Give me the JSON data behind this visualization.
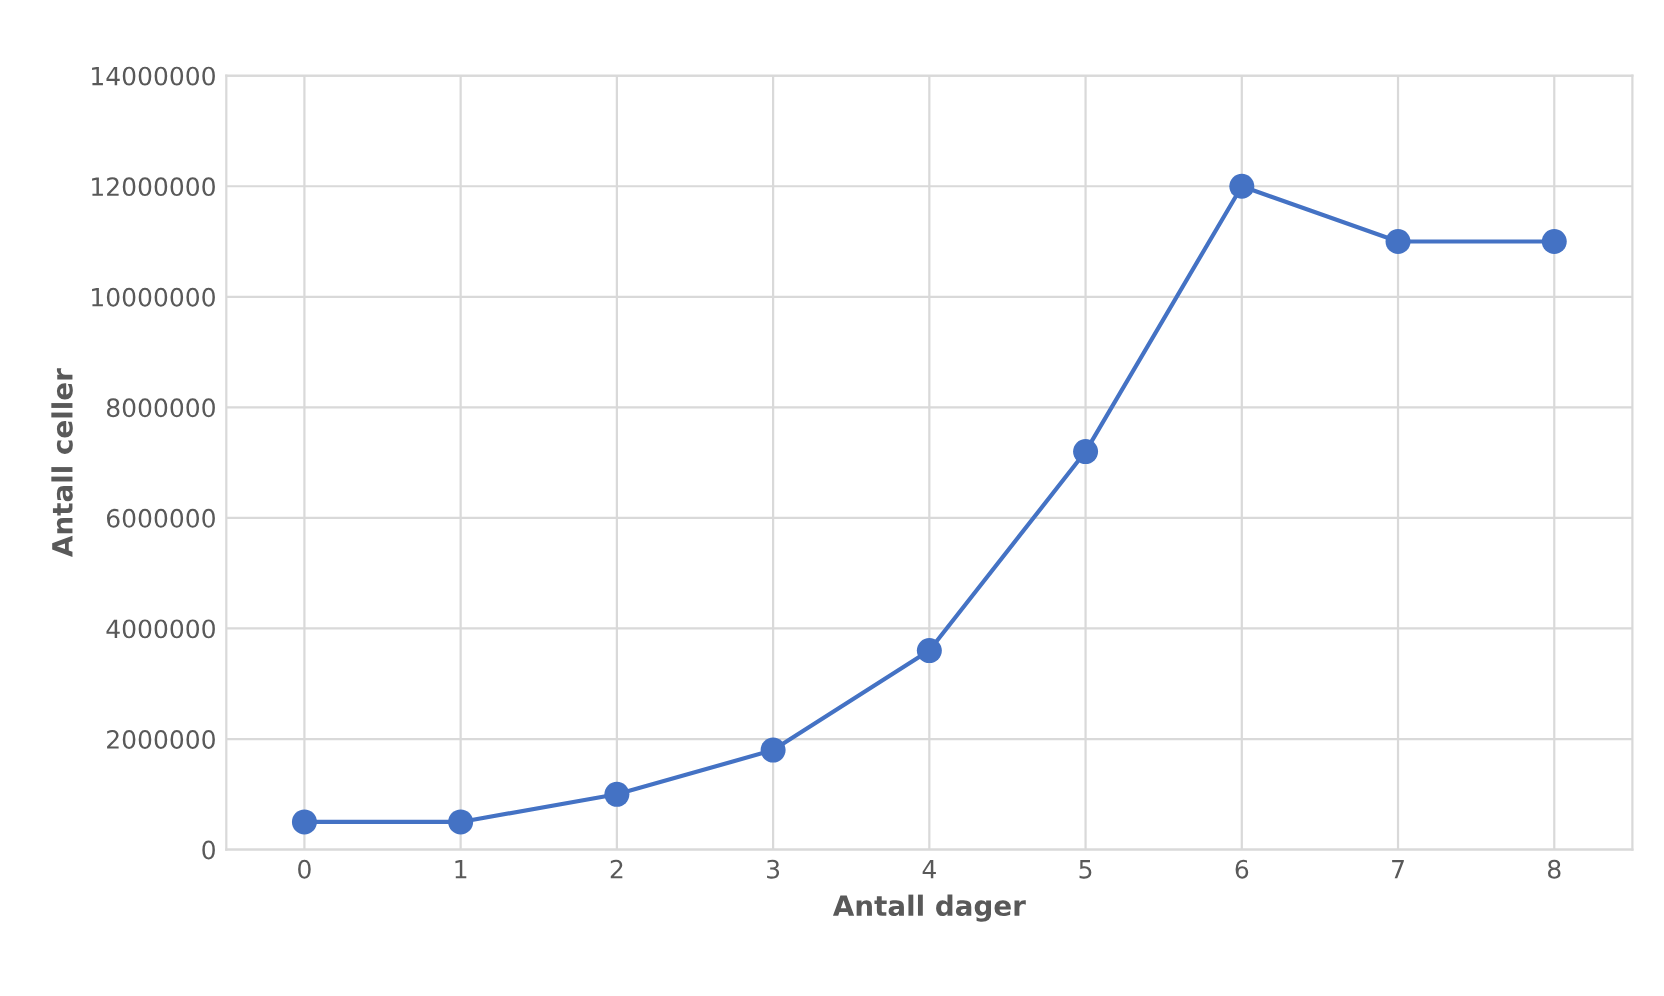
{
  "chart_data": {
    "type": "line",
    "xlabel": "Antall dager",
    "ylabel": "Antall celler",
    "x": [
      0,
      1,
      2,
      3,
      4,
      5,
      6,
      7,
      8
    ],
    "series": [
      {
        "color": "#4472c4",
        "values": [
          500000,
          500000,
          1000000,
          1800000,
          3600000,
          7200000,
          12000000,
          11000000,
          11000000
        ]
      }
    ],
    "xlim": [
      -0.5,
      8.5
    ],
    "xticks": [
      0,
      1,
      2,
      3,
      4,
      5,
      6,
      7,
      8
    ],
    "ylim": [
      0,
      14000000
    ],
    "yticks": [
      0,
      2000000,
      4000000,
      6000000,
      8000000,
      10000000,
      12000000,
      14000000
    ],
    "grid": true,
    "marker": "circle",
    "line_style": "solid",
    "legend": false
  }
}
